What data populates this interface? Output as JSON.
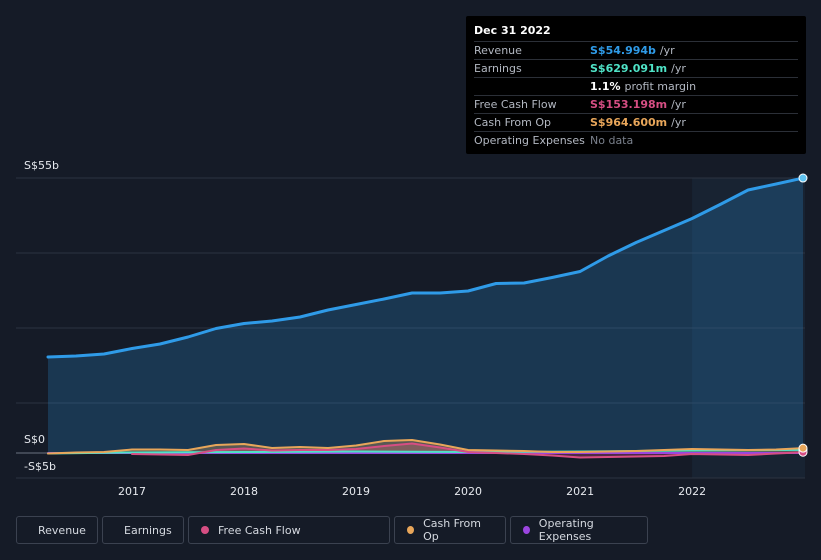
{
  "chart_data": {
    "type": "area",
    "currency": "S$",
    "y_labels": {
      "top": "S$55b",
      "zero": "S$0",
      "bottom": "-S$5b"
    },
    "ylim": [
      -5,
      55
    ],
    "xlim": [
      2016.25,
      2022.99
    ],
    "x_ticks": [
      "2017",
      "2018",
      "2019",
      "2020",
      "2021",
      "2022"
    ],
    "x_tick_values": [
      2017,
      2018,
      2019,
      2020,
      2021,
      2022
    ],
    "forecast_shade_start": 2022.0,
    "series": [
      {
        "name": "Revenue",
        "color": "#2f9be8",
        "fill": true,
        "x": [
          2016.25,
          2016.5,
          2016.75,
          2017.0,
          2017.25,
          2017.5,
          2017.75,
          2018.0,
          2018.25,
          2018.5,
          2018.75,
          2019.0,
          2019.25,
          2019.5,
          2019.75,
          2020.0,
          2020.25,
          2020.5,
          2020.75,
          2021.0,
          2021.25,
          2021.5,
          2021.75,
          2022.0,
          2022.25,
          2022.5,
          2022.75,
          2022.99
        ],
        "values": [
          19.2,
          19.4,
          19.8,
          20.9,
          21.8,
          23.2,
          24.9,
          25.9,
          26.4,
          27.2,
          28.6,
          29.7,
          30.8,
          32.0,
          32.0,
          32.4,
          33.9,
          34.0,
          35.1,
          36.3,
          39.4,
          42.1,
          44.5,
          46.9,
          49.7,
          52.6,
          53.8,
          54.994
        ]
      },
      {
        "name": "Earnings",
        "color": "#4fe3c7",
        "fill": false,
        "x": [
          2016.25,
          2017.0,
          2018.0,
          2019.0,
          2020.0,
          2021.0,
          2022.0,
          2022.99
        ],
        "values": [
          -0.1,
          0.1,
          0.2,
          0.3,
          0.2,
          0.3,
          0.5,
          0.629
        ]
      },
      {
        "name": "Free Cash Flow",
        "color": "#d64e83",
        "fill": true,
        "x": [
          2017.0,
          2017.25,
          2017.5,
          2017.75,
          2018.0,
          2018.25,
          2018.5,
          2018.75,
          2019.0,
          2019.25,
          2019.5,
          2019.75,
          2020.0,
          2020.25,
          2020.5,
          2020.75,
          2021.0,
          2021.25,
          2021.5,
          2021.75,
          2022.0,
          2022.25,
          2022.5,
          2022.75,
          2022.99
        ],
        "values": [
          -0.2,
          -0.3,
          -0.4,
          0.6,
          0.9,
          0.5,
          0.6,
          0.6,
          0.8,
          1.4,
          1.9,
          1.1,
          0.2,
          0.0,
          -0.2,
          -0.5,
          -0.9,
          -0.8,
          -0.7,
          -0.6,
          -0.2,
          -0.3,
          -0.4,
          -0.1,
          0.153
        ]
      },
      {
        "name": "Cash From Op",
        "color": "#e8a65a",
        "fill": true,
        "x": [
          2016.25,
          2016.5,
          2016.75,
          2017.0,
          2017.25,
          2017.5,
          2017.75,
          2018.0,
          2018.25,
          2018.5,
          2018.75,
          2019.0,
          2019.25,
          2019.5,
          2019.75,
          2020.0,
          2020.25,
          2020.5,
          2020.75,
          2021.0,
          2021.25,
          2021.5,
          2021.75,
          2022.0,
          2022.25,
          2022.5,
          2022.75,
          2022.99
        ],
        "values": [
          -0.1,
          0.1,
          0.2,
          0.7,
          0.7,
          0.6,
          1.6,
          1.8,
          1.0,
          1.2,
          1.0,
          1.5,
          2.4,
          2.6,
          1.7,
          0.6,
          0.5,
          0.4,
          0.2,
          0.2,
          0.3,
          0.4,
          0.6,
          0.8,
          0.7,
          0.6,
          0.7,
          0.965
        ]
      },
      {
        "name": "Operating Expenses",
        "color": "#9b45e0",
        "fill": false,
        "x": [
          2016.25,
          2022.99
        ],
        "values": [
          0.0,
          0.0
        ]
      }
    ]
  },
  "tooltip": {
    "date": "Dec 31 2022",
    "rows": [
      {
        "label": "Revenue",
        "value": "S$54.994b",
        "unit": "/yr",
        "color": "#2f9be8"
      },
      {
        "label": "Earnings",
        "value": "S$629.091m",
        "unit": "/yr",
        "color": "#4fe3c7"
      },
      {
        "label": "",
        "value": "1.1%",
        "unit": "profit margin",
        "color": "#ffffff"
      },
      {
        "label": "Free Cash Flow",
        "value": "S$153.198m",
        "unit": "/yr",
        "color": "#d64e83"
      },
      {
        "label": "Cash From Op",
        "value": "S$964.600m",
        "unit": "/yr",
        "color": "#e8a65a"
      },
      {
        "label": "Operating Expenses",
        "value": "",
        "unit": "No data",
        "color": "#7a808c"
      }
    ]
  },
  "legend": [
    {
      "label": "Revenue",
      "color": "#2f9be8"
    },
    {
      "label": "Earnings",
      "color": "#4fe3c7"
    },
    {
      "label": "Free Cash Flow",
      "color": "#d64e83"
    },
    {
      "label": "Cash From Op",
      "color": "#e8a65a"
    },
    {
      "label": "Operating Expenses",
      "color": "#9b45e0"
    }
  ]
}
